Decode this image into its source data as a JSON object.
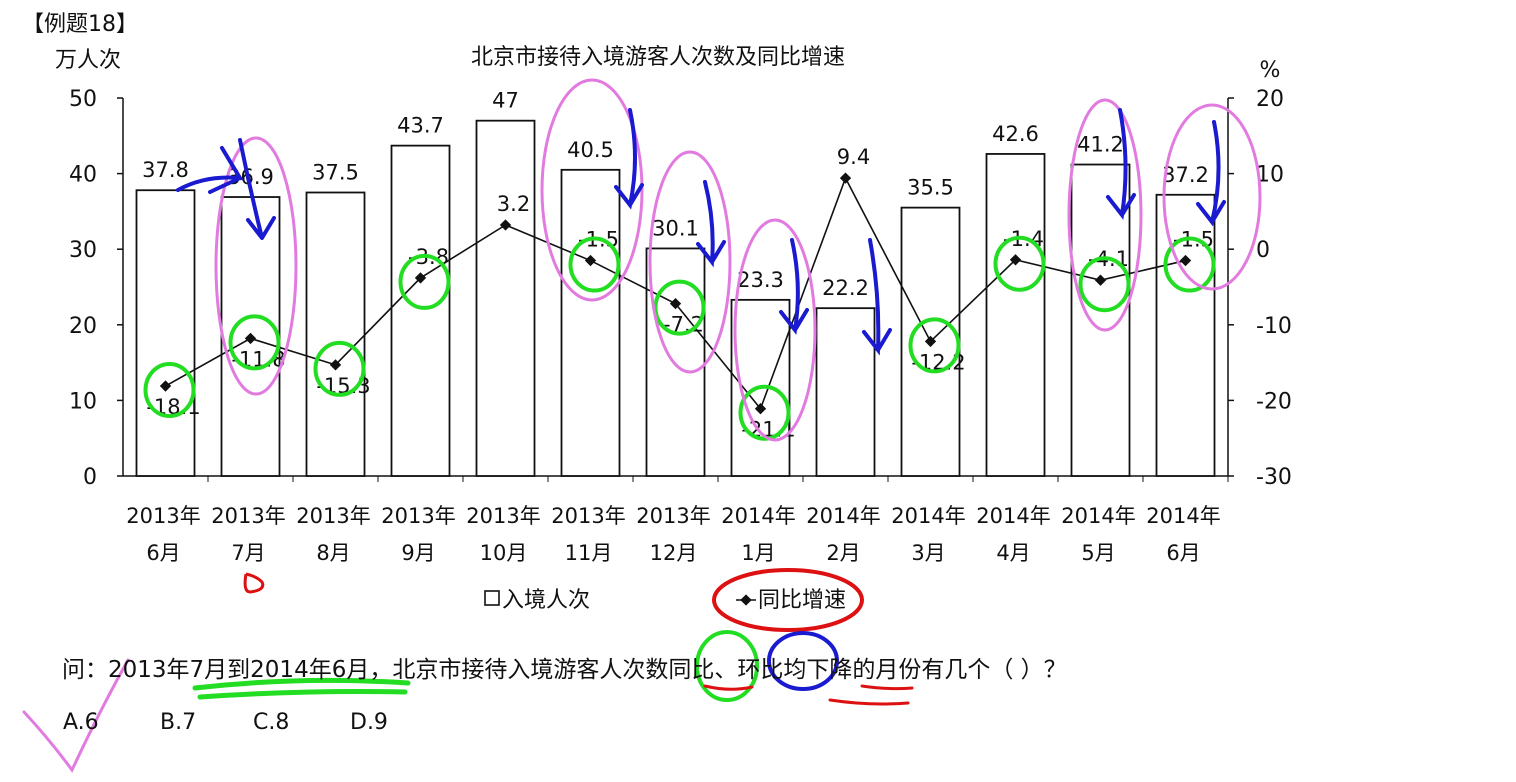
{
  "header": {
    "tag": "【例题18】"
  },
  "chart_data": {
    "type": "bar",
    "title": "北京市接待入境游客人次数及同比增速",
    "ylabel": "万人次",
    "y2label": "%",
    "ylim": [
      0,
      50
    ],
    "y2lim": [
      -30,
      20
    ],
    "yticks": [
      "0",
      "10",
      "20",
      "30",
      "40",
      "50"
    ],
    "y2ticks": [
      "-30",
      "-20",
      "-10",
      "0",
      "10",
      "20"
    ],
    "categories": [
      [
        "2013年",
        "6月"
      ],
      [
        "2013年",
        "7月"
      ],
      [
        "2013年",
        "8月"
      ],
      [
        "2013年",
        "9月"
      ],
      [
        "2013年",
        "10月"
      ],
      [
        "2013年",
        "11月"
      ],
      [
        "2013年",
        "12月"
      ],
      [
        "2014年",
        "1月"
      ],
      [
        "2014年",
        "2月"
      ],
      [
        "2014年",
        "3月"
      ],
      [
        "2014年",
        "4月"
      ],
      [
        "2014年",
        "5月"
      ],
      [
        "2014年",
        "6月"
      ]
    ],
    "series": [
      {
        "name": "入境人次",
        "type": "bar",
        "axis": "left",
        "values": [
          37.8,
          36.9,
          37.5,
          43.7,
          47,
          40.5,
          30.1,
          23.3,
          22.2,
          35.5,
          42.6,
          41.2,
          37.2
        ],
        "labels": [
          "37.8",
          "36.9",
          "37.5",
          "43.7",
          "47",
          "40.5",
          "30.1",
          "23.3",
          "22.2",
          "35.5",
          "42.6",
          "41.2",
          "37.2"
        ]
      },
      {
        "name": "同比增速",
        "type": "line",
        "axis": "right",
        "values": [
          -18.1,
          -11.8,
          -15.3,
          -3.8,
          3.2,
          -1.5,
          -7.2,
          -21.1,
          9.4,
          -12.2,
          -1.4,
          -4.1,
          -1.5
        ],
        "labels": [
          "-18.1",
          "-11.8",
          "-15.3",
          "-3.8",
          "3.2",
          "-1.5",
          "-7.2",
          "-21.1",
          "9.4",
          "-12.2",
          "-1.4",
          "-4.1",
          "-1.5"
        ]
      }
    ],
    "legend": "bottom-center",
    "grid": false
  },
  "question": {
    "text": "问：2013年7月到2014年6月，北京市接待入境游客人次数同比、环比均下降的月份有几个（    ）？",
    "options": [
      "A.6",
      "B.7",
      "C.8",
      "D.9"
    ]
  },
  "colors": {
    "bar_edge": "#111111",
    "line": "#111111",
    "green_mark": "#22dd22",
    "pink_mark": "#e27be0",
    "blue_mark": "#1a1ad0",
    "red_mark": "#dd1111"
  }
}
